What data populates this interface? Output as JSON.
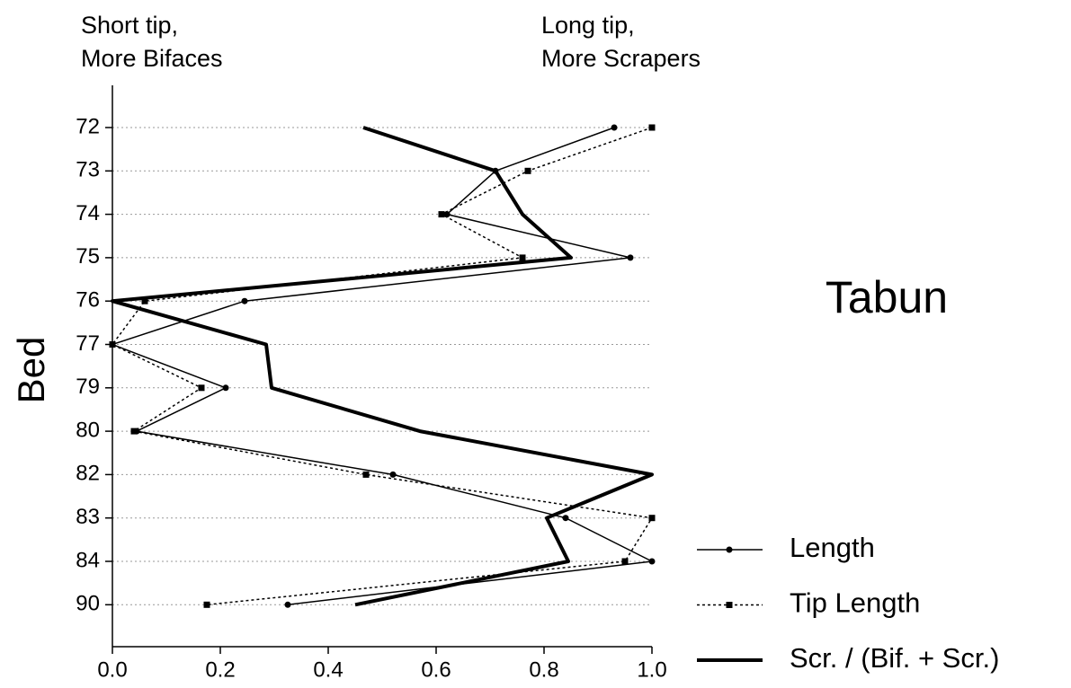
{
  "chart_data": {
    "type": "line",
    "orientation": "horizontal",
    "y_label": "Bed",
    "annotations": [
      "Short tip,",
      "More Bifaces",
      "Long tip,",
      "More Scrapers",
      "Tabun"
    ],
    "categories": [
      "72",
      "73",
      "74",
      "75",
      "76",
      "77",
      "79",
      "80",
      "82",
      "83",
      "84",
      "90"
    ],
    "series": [
      {
        "name": "Length",
        "color": "#000000",
        "width": 1.5,
        "dash": "none",
        "marker": "circle",
        "values": [
          0.93,
          0.71,
          0.62,
          0.96,
          0.245,
          0.0,
          0.21,
          0.045,
          0.52,
          0.84,
          1.0,
          0.325
        ]
      },
      {
        "name": "Tip Length",
        "color": "#000000",
        "width": 1.5,
        "dash": "3 3",
        "marker": "square",
        "values": [
          1.0,
          0.77,
          0.61,
          0.76,
          0.06,
          0.0,
          0.165,
          0.04,
          0.47,
          1.0,
          0.95,
          0.175
        ]
      },
      {
        "name": "Scr. / (Bif. + Scr.)",
        "color": "#000000",
        "width": 4,
        "dash": "none",
        "marker": "none",
        "values": [
          0.465,
          0.71,
          0.76,
          0.85,
          0.0,
          0.285,
          0.295,
          0.57,
          1.0,
          0.805,
          0.845,
          0.45
        ]
      }
    ],
    "xlim": [
      0,
      1
    ],
    "xticks": [
      {
        "value": 0,
        "label": "0.0"
      },
      0.2,
      0.4,
      0.6,
      0.8,
      {
        "value": 1,
        "label": "1.0"
      }
    ],
    "grid": true,
    "legend": "lower right"
  }
}
